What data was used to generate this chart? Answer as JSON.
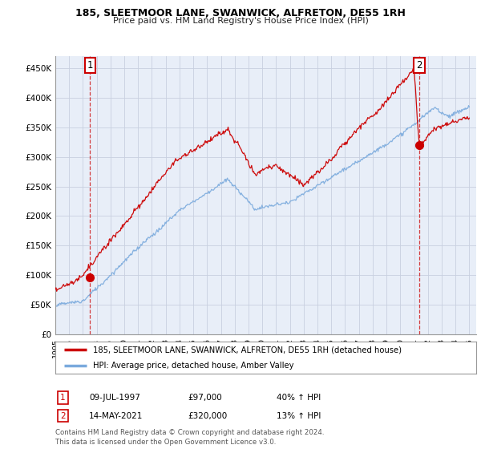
{
  "title": "185, SLEETMOOR LANE, SWANWICK, ALFRETON, DE55 1RH",
  "subtitle": "Price paid vs. HM Land Registry's House Price Index (HPI)",
  "legend_line1": "185, SLEETMOOR LANE, SWANWICK, ALFRETON, DE55 1RH (detached house)",
  "legend_line2": "HPI: Average price, detached house, Amber Valley",
  "annotation1_date": "09-JUL-1997",
  "annotation1_price": "£97,000",
  "annotation1_hpi": "40% ↑ HPI",
  "annotation2_date": "14-MAY-2021",
  "annotation2_price": "£320,000",
  "annotation2_hpi": "13% ↑ HPI",
  "footnote": "Contains HM Land Registry data © Crown copyright and database right 2024.\nThis data is licensed under the Open Government Licence v3.0.",
  "sale1_year": 1997.52,
  "sale1_value": 97000,
  "sale2_year": 2021.37,
  "sale2_value": 320000,
  "hpi_color": "#7aaadd",
  "price_color": "#cc0000",
  "bg_color": "#ffffff",
  "plot_bg_color": "#e8eef8",
  "grid_color": "#c8d0e0",
  "ylim": [
    0,
    470000
  ],
  "xlim_start": 1995.0,
  "xlim_end": 2025.5,
  "yticks": [
    0,
    50000,
    100000,
    150000,
    200000,
    250000,
    300000,
    350000,
    400000,
    450000
  ],
  "ylabels": [
    "£0",
    "£50K",
    "£100K",
    "£150K",
    "£200K",
    "£250K",
    "£300K",
    "£350K",
    "£400K",
    "£450K"
  ]
}
